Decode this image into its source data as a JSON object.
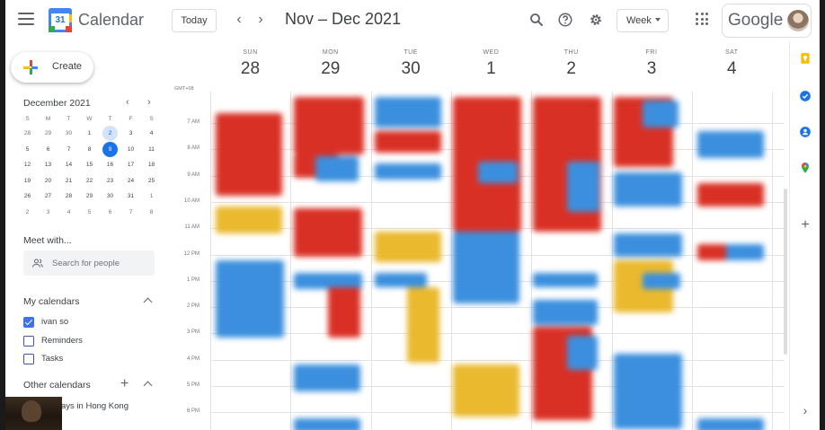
{
  "app": {
    "title": "Calendar",
    "logo_day": "31"
  },
  "header": {
    "today_label": "Today",
    "prev_icon": "chevron-left-icon",
    "next_icon": "chevron-right-icon",
    "range_title": "Nov – Dec 2021",
    "view_label": "Week",
    "brand": "Google"
  },
  "sidebar": {
    "create_label": "Create",
    "mini_calendar": {
      "title": "December 2021",
      "weekdays": [
        "S",
        "M",
        "T",
        "W",
        "T",
        "F",
        "S"
      ],
      "weeks": [
        [
          "28",
          "29",
          "30",
          "1",
          "2",
          "3",
          "4"
        ],
        [
          "5",
          "6",
          "7",
          "8",
          "9",
          "10",
          "11"
        ],
        [
          "12",
          "13",
          "14",
          "15",
          "16",
          "17",
          "18"
        ],
        [
          "19",
          "20",
          "21",
          "22",
          "23",
          "24",
          "25"
        ],
        [
          "26",
          "27",
          "28",
          "29",
          "30",
          "31",
          "1"
        ],
        [
          "2",
          "3",
          "4",
          "5",
          "6",
          "7",
          "8"
        ]
      ],
      "today": "9",
      "selected": "2"
    },
    "meet_title": "Meet with...",
    "people_placeholder": "Search for people",
    "my_calendars_title": "My calendars",
    "my_calendars": [
      {
        "label": "ivan so",
        "checked": true
      },
      {
        "label": "Reminders",
        "checked": false
      },
      {
        "label": "Tasks",
        "checked": false
      }
    ],
    "other_calendars_title": "Other calendars",
    "other_calendars": [
      {
        "label": "ays in Hong Kong"
      }
    ]
  },
  "week": {
    "gmt_label": "GMT+08",
    "days": [
      {
        "dow": "SUN",
        "num": "28"
      },
      {
        "dow": "MON",
        "num": "29"
      },
      {
        "dow": "TUE",
        "num": "30"
      },
      {
        "dow": "WED",
        "num": "1"
      },
      {
        "dow": "THU",
        "num": "2"
      },
      {
        "dow": "FRI",
        "num": "3"
      },
      {
        "dow": "SAT",
        "num": "4"
      }
    ],
    "hours": [
      "7 AM",
      "8 AM",
      "9 AM",
      "10 AM",
      "11 AM",
      "12 PM",
      "1 PM",
      "2 PM",
      "3 PM",
      "4 PM",
      "5 PM",
      "6 PM"
    ]
  },
  "colors": {
    "red": "#d93025",
    "blue": "#3b8fde",
    "yellow": "#eab92e",
    "accent": "#1a73e8"
  }
}
